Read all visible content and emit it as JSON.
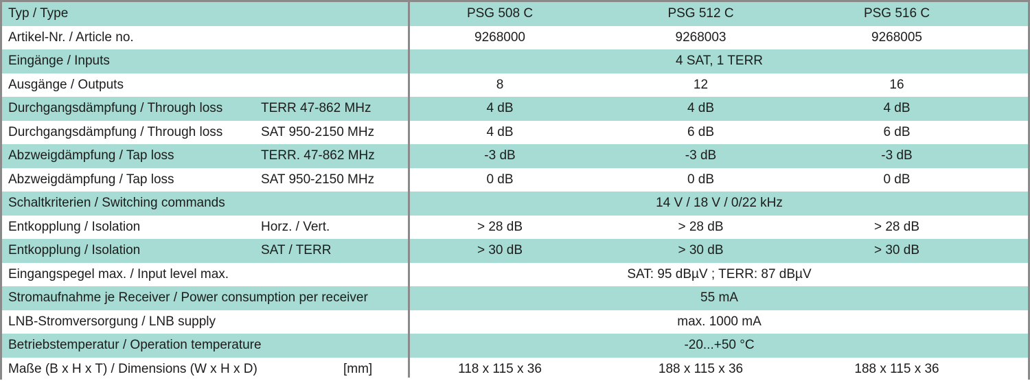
{
  "table": {
    "rows": [
      {
        "label": "Typ / Type",
        "sub": "",
        "v1": "PSG 508 C",
        "v2": "PSG 512 C",
        "v3": "PSG 516 C",
        "span": ""
      },
      {
        "label": "Artikel-Nr. / Article no.",
        "sub": "",
        "v1": "9268000",
        "v2": "9268003",
        "v3": "9268005",
        "span": ""
      },
      {
        "label": "Eingänge / Inputs",
        "sub": "",
        "v1": "",
        "v2": "",
        "v3": "",
        "span": "4 SAT, 1 TERR"
      },
      {
        "label": "Ausgänge / Outputs",
        "sub": "",
        "v1": "8",
        "v2": "12",
        "v3": "16",
        "span": ""
      },
      {
        "label": "Durchgangsdämpfung / Through loss",
        "sub": "TERR 47-862 MHz",
        "v1": "4 dB",
        "v2": "4 dB",
        "v3": "4 dB",
        "span": ""
      },
      {
        "label": "Durchgangsdämpfung / Through loss",
        "sub": "SAT 950-2150 MHz",
        "v1": "4 dB",
        "v2": "6 dB",
        "v3": "6 dB",
        "span": ""
      },
      {
        "label": "Abzweigdämpfung / Tap loss",
        "sub": "TERR. 47-862 MHz",
        "v1": "-3 dB",
        "v2": "-3 dB",
        "v3": "-3 dB",
        "span": ""
      },
      {
        "label": "Abzweigdämpfung / Tap loss",
        "sub": "SAT 950-2150 MHz",
        "v1": "0 dB",
        "v2": "0 dB",
        "v3": "0 dB",
        "span": ""
      },
      {
        "label": "Schaltkriterien / Switching commands",
        "sub": "",
        "v1": "",
        "v2": "",
        "v3": "",
        "span": "14 V / 18 V / 0/22 kHz"
      },
      {
        "label": "Entkopplung / Isolation",
        "sub": "Horz. / Vert.",
        "v1": "> 28 dB",
        "v2": "> 28 dB",
        "v3": "> 28 dB",
        "span": ""
      },
      {
        "label": "Entkopplung / Isolation",
        "sub": "SAT / TERR",
        "v1": "> 30 dB",
        "v2": "> 30 dB",
        "v3": "> 30 dB",
        "span": ""
      },
      {
        "label": "Eingangspegel max. / Input level max.",
        "sub": "",
        "v1": "",
        "v2": "",
        "v3": "",
        "span": "SAT: 95 dBµV  ; TERR: 87 dBµV"
      },
      {
        "label": "Stromaufnahme je Receiver / Power consumption per receiver",
        "sub": "",
        "v1": "",
        "v2": "",
        "v3": "",
        "span": "55 mA"
      },
      {
        "label": "LNB-Stromversorgung / LNB supply",
        "sub": "",
        "v1": "",
        "v2": "",
        "v3": "",
        "span": "max. 1000 mA"
      },
      {
        "label": "Betriebstemperatur / Operation temperature",
        "sub": "",
        "v1": "",
        "v2": "",
        "v3": "",
        "span": "-20...+50 °C"
      },
      {
        "label": "Maße (B x H x T) / Dimensions (W x H x D)",
        "sub": "[mm]",
        "v1": "118 x 115 x 36",
        "v2": "188 x 115 x 36",
        "v3": "188 x 115 x 36",
        "span": ""
      }
    ]
  },
  "colors": {
    "row_teal": "#a6dcd3",
    "row_white": "#ffffff",
    "border": "#8a8a8a",
    "text": "#1c1c1c"
  }
}
